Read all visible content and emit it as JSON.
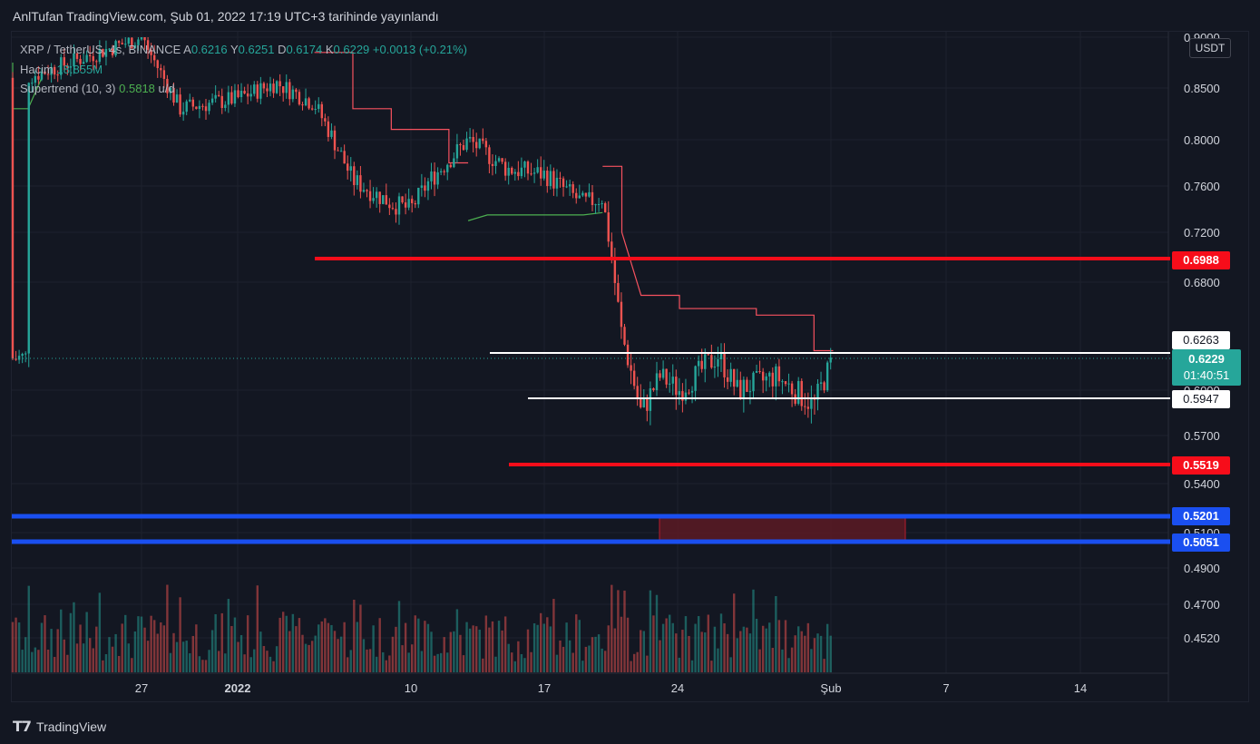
{
  "header": {
    "publish_text": "AnlTufan TradingView.com, Şub 01, 2022 17:19 UTC+3 tarihinde yayınlandı"
  },
  "legend": {
    "symbol": "XRP / TetherUS, 4s, BINANCE",
    "ohlc_open_label": "A",
    "ohlc_open": "0.6216",
    "ohlc_high_label": "Y",
    "ohlc_high": "0.6251",
    "ohlc_low_label": "D",
    "ohlc_low": "0.6174",
    "ohlc_close_label": "K",
    "ohlc_close": "0.6229",
    "change": "+0.0013 (+0.21%)",
    "volume_label": "Hacim",
    "volume_value": "18.855M",
    "indicator_label": "Supertrend (10, 3)",
    "indicator_value": "0.5818",
    "indicator_extra": "u/d"
  },
  "price_axis": {
    "unit": "USDT",
    "ticks": [
      "0.9000",
      "0.8500",
      "0.8000",
      "0.7600",
      "0.7200",
      "0.6800",
      "0.6000",
      "0.5700",
      "0.5400",
      "0.5100",
      "0.4900",
      "0.4700",
      "0.4520"
    ]
  },
  "time_axis": {
    "ticks": [
      "27",
      "2022",
      "10",
      "17",
      "24",
      "Şub",
      "7",
      "14"
    ]
  },
  "price_labels": {
    "resistance_high": "0.6988",
    "resistance_mid": "0.6263",
    "last_price": "0.6229",
    "countdown": "01:40:51",
    "support_mid": "0.5947",
    "support_low": "0.5519",
    "zone_top": "0.5201",
    "zone_bottom": "0.5051"
  },
  "colors": {
    "background": "#131722",
    "grid": "#1e222d",
    "up": "#26a69a",
    "down": "#ef5350",
    "supertrend_down": "#f7525f",
    "supertrend_up": "#4caf50",
    "level_red": "#f70d1a",
    "level_blue": "#1a4ff0",
    "level_white": "#ffffff",
    "zone_fill": "#5c1a23",
    "last_price_badge": "#26a69a"
  },
  "branding": {
    "logo_icon": "tradingview-logo-icon",
    "logo_text": "TradingView"
  },
  "chart_data": {
    "type": "candlestick",
    "title": "XRP / TetherUS, 4s, BINANCE",
    "x_ticks": [
      "27",
      "2022",
      "10",
      "17",
      "24",
      "Şub",
      "7",
      "14"
    ],
    "y_ticks": [
      0.9,
      0.85,
      0.8,
      0.76,
      0.72,
      0.68,
      0.6,
      0.57,
      0.54,
      0.51,
      0.49,
      0.47,
      0.452
    ],
    "close_path": [
      {
        "x": "Dec 21",
        "y": 0.86
      },
      {
        "x": "Dec 24",
        "y": 0.88
      },
      {
        "x": "Dec 27",
        "y": 0.9
      },
      {
        "x": "Dec 29",
        "y": 0.83
      },
      {
        "x": "Jan 01",
        "y": 0.84
      },
      {
        "x": "Jan 03",
        "y": 0.855
      },
      {
        "x": "Jan 05",
        "y": 0.835
      },
      {
        "x": "Jan 07",
        "y": 0.765
      },
      {
        "x": "Jan 09",
        "y": 0.745
      },
      {
        "x": "Jan 10",
        "y": 0.74
      },
      {
        "x": "Jan 11",
        "y": 0.765
      },
      {
        "x": "Jan 13",
        "y": 0.8
      },
      {
        "x": "Jan 15",
        "y": 0.775
      },
      {
        "x": "Jan 17",
        "y": 0.77
      },
      {
        "x": "Jan 19",
        "y": 0.745
      },
      {
        "x": "Jan 20",
        "y": 0.75
      },
      {
        "x": "Jan 21",
        "y": 0.64
      },
      {
        "x": "Jan 22",
        "y": 0.585
      },
      {
        "x": "Jan 23",
        "y": 0.61
      },
      {
        "x": "Jan 24",
        "y": 0.6
      },
      {
        "x": "Jan 26",
        "y": 0.625
      },
      {
        "x": "Jan 27",
        "y": 0.6
      },
      {
        "x": "Jan 29",
        "y": 0.61
      },
      {
        "x": "Jan 31",
        "y": 0.59
      },
      {
        "x": "Feb 01",
        "y": 0.6229
      }
    ],
    "horizontal_levels": [
      {
        "value": 0.6988,
        "color": "red"
      },
      {
        "value": 0.6263,
        "color": "white"
      },
      {
        "value": 0.5947,
        "color": "white"
      },
      {
        "value": 0.5519,
        "color": "red"
      },
      {
        "value": 0.5201,
        "color": "blue"
      },
      {
        "value": 0.5051,
        "color": "blue"
      }
    ],
    "zone": {
      "from": 0.5051,
      "to": 0.5201
    },
    "last_price": 0.6229,
    "volume_last": "18.855M",
    "supertrend": {
      "period": 10,
      "multiplier": 3,
      "value": 0.5818
    },
    "grid": true
  }
}
